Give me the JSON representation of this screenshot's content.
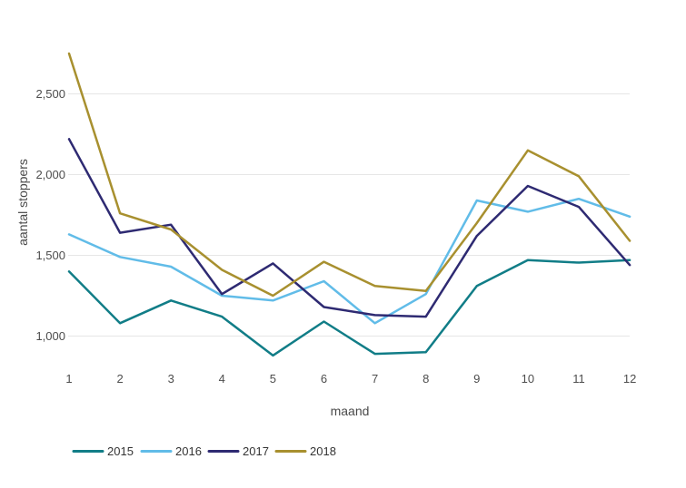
{
  "chart_data": {
    "type": "line",
    "x": [
      1,
      2,
      3,
      4,
      5,
      6,
      7,
      8,
      9,
      10,
      11,
      12
    ],
    "x_tick_labels": [
      "1",
      "2",
      "3",
      "4",
      "5",
      "6",
      "7",
      "8",
      "9",
      "10",
      "11",
      "12"
    ],
    "xlabel": "maand",
    "ylabel": "aantal stoppers",
    "y_ticks": [
      {
        "value": 1000,
        "label": "1,000"
      },
      {
        "value": 1500,
        "label": "1,500"
      },
      {
        "value": 2000,
        "label": "2,000"
      },
      {
        "value": 2500,
        "label": "2,500"
      }
    ],
    "ylim": [
      760,
      2800
    ],
    "grid": "horizontal-only",
    "legend_position": "bottom-left",
    "series": [
      {
        "name": "2015",
        "color": "#117d87",
        "values": [
          1400,
          1080,
          1220,
          1120,
          880,
          1090,
          890,
          900,
          1310,
          1470,
          1455,
          1470
        ]
      },
      {
        "name": "2016",
        "color": "#61bce8",
        "values": [
          1630,
          1490,
          1430,
          1250,
          1220,
          1340,
          1080,
          1260,
          1840,
          1770,
          1850,
          1740
        ]
      },
      {
        "name": "2017",
        "color": "#2e2a72",
        "values": [
          2220,
          1640,
          1690,
          1260,
          1450,
          1180,
          1130,
          1120,
          1620,
          1930,
          1800,
          1440
        ]
      },
      {
        "name": "2018",
        "color": "#a8902f",
        "values": [
          2750,
          1760,
          1660,
          1410,
          1250,
          1460,
          1310,
          1280,
          1700,
          2150,
          1990,
          1590
        ]
      }
    ]
  }
}
